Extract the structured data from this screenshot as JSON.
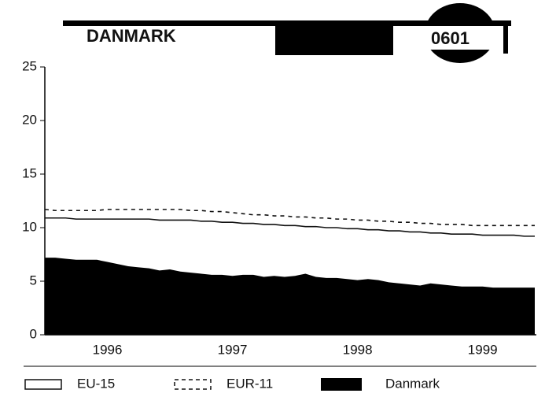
{
  "chart_data": {
    "type": "line",
    "header_left": "DANMARK",
    "header_right": "0601",
    "categories": [
      null,
      null,
      null,
      null,
      null,
      null,
      "1996",
      null,
      null,
      null,
      null,
      null,
      null,
      null,
      null,
      null,
      null,
      null,
      "1997",
      null,
      null,
      null,
      null,
      null,
      null,
      null,
      null,
      null,
      null,
      null,
      "1998",
      null,
      null,
      null,
      null,
      null,
      null,
      null,
      null,
      null,
      null,
      null,
      "1999",
      null,
      null,
      null,
      null,
      null
    ],
    "series": [
      {
        "name": "EU-15",
        "style": "solid",
        "color": "#111111",
        "values": [
          10.9,
          10.9,
          10.9,
          10.8,
          10.8,
          10.8,
          10.8,
          10.8,
          10.8,
          10.8,
          10.8,
          10.7,
          10.7,
          10.7,
          10.7,
          10.6,
          10.6,
          10.5,
          10.5,
          10.4,
          10.4,
          10.3,
          10.3,
          10.2,
          10.2,
          10.1,
          10.1,
          10.0,
          10.0,
          9.9,
          9.9,
          9.8,
          9.8,
          9.7,
          9.7,
          9.6,
          9.6,
          9.5,
          9.5,
          9.4,
          9.4,
          9.4,
          9.3,
          9.3,
          9.3,
          9.3,
          9.2,
          9.2
        ]
      },
      {
        "name": "EUR-11",
        "style": "dashed",
        "color": "#111111",
        "values": [
          11.7,
          11.6,
          11.6,
          11.6,
          11.6,
          11.6,
          11.7,
          11.7,
          11.7,
          11.7,
          11.7,
          11.7,
          11.7,
          11.7,
          11.6,
          11.6,
          11.5,
          11.5,
          11.4,
          11.3,
          11.2,
          11.2,
          11.1,
          11.1,
          11.0,
          11.0,
          10.9,
          10.9,
          10.8,
          10.8,
          10.7,
          10.7,
          10.6,
          10.6,
          10.5,
          10.5,
          10.4,
          10.4,
          10.3,
          10.3,
          10.3,
          10.2,
          10.2,
          10.2,
          10.2,
          10.2,
          10.2,
          10.2
        ]
      },
      {
        "name": "Danmark",
        "style": "area",
        "color": "#000000",
        "values": [
          7.2,
          7.2,
          7.1,
          7.0,
          7.0,
          7.0,
          6.8,
          6.6,
          6.4,
          6.3,
          6.2,
          6.0,
          6.1,
          5.9,
          5.8,
          5.7,
          5.6,
          5.6,
          5.5,
          5.6,
          5.6,
          5.4,
          5.5,
          5.4,
          5.5,
          5.7,
          5.4,
          5.3,
          5.3,
          5.2,
          5.1,
          5.2,
          5.1,
          4.9,
          4.8,
          4.7,
          4.6,
          4.8,
          4.7,
          4.6,
          4.5,
          4.5,
          4.5,
          4.4,
          4.4,
          4.4,
          4.4,
          4.4
        ]
      }
    ],
    "ylim": [
      0,
      25
    ],
    "yticks": [
      0,
      5,
      10,
      15,
      20,
      25
    ]
  }
}
